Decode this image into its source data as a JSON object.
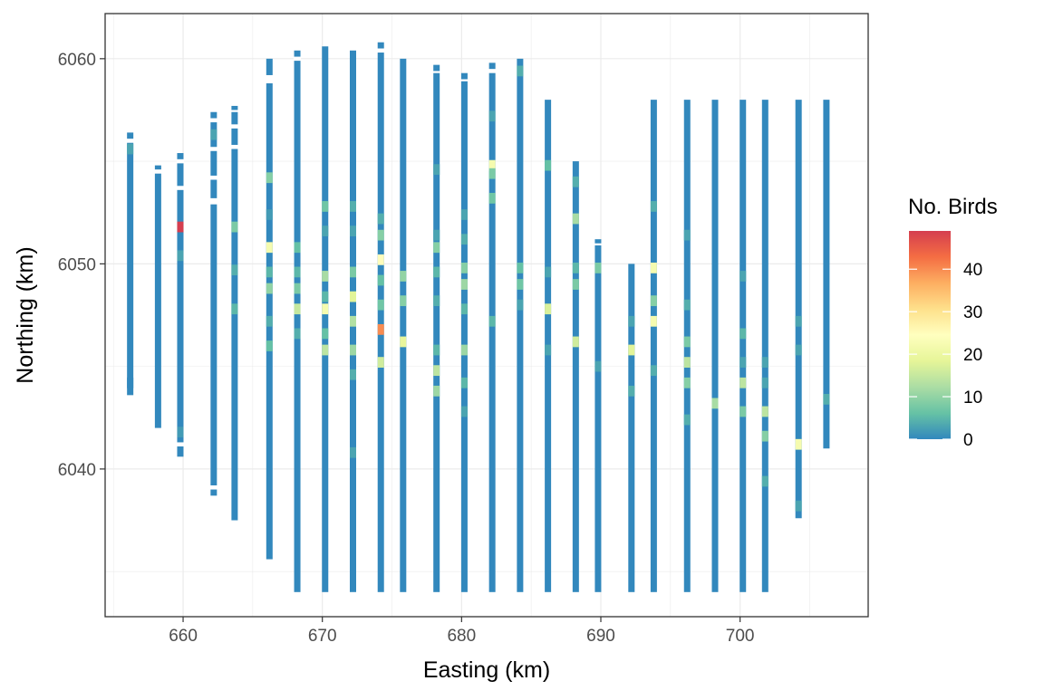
{
  "chart_data": {
    "type": "heatmap",
    "title": "",
    "xlabel": "Easting (km)",
    "ylabel": "Northing (km)",
    "xlim": [
      654.4,
      709.2
    ],
    "ylim": [
      6032.8,
      6062.2
    ],
    "xticks": [
      660,
      670,
      680,
      690,
      700
    ],
    "yticks": [
      6040,
      6050,
      6060
    ],
    "grid": true,
    "legend": {
      "title": "No. Birds",
      "position": "right",
      "min": 0,
      "max": 49,
      "ticks": [
        0,
        10,
        20,
        30,
        40
      ],
      "colors": [
        "#3288bd",
        "#66c2a5",
        "#abdda4",
        "#e6f598",
        "#ffffbf",
        "#fee08b",
        "#fdae61",
        "#f46d43",
        "#d53e4f"
      ]
    },
    "transects": [
      {
        "x": 656.2,
        "y_start": 6043.6,
        "y_end": 6056.4,
        "gaps": [
          [
            6055.9,
            6056.1
          ]
        ],
        "highlights": [
          {
            "y": 6055.6,
            "v": 3
          },
          {
            "y": 6044.2,
            "v": 0
          }
        ]
      },
      {
        "x": 658.2,
        "y_start": 6042.0,
        "y_end": 6054.8,
        "gaps": [
          [
            6054.4,
            6054.6
          ]
        ],
        "highlights": []
      },
      {
        "x": 659.8,
        "y_start": 6040.6,
        "y_end": 6055.4,
        "gaps": [
          [
            6054.9,
            6055.1
          ],
          [
            6053.6,
            6053.8
          ],
          [
            6041.1,
            6041.3
          ]
        ],
        "highlights": [
          {
            "y": 6051.8,
            "v": 49
          },
          {
            "y": 6050.4,
            "v": 3
          },
          {
            "y": 6041.8,
            "v": 2
          }
        ]
      },
      {
        "x": 662.2,
        "y_start": 6038.7,
        "y_end": 6057.4,
        "gaps": [
          [
            6056.9,
            6057.1
          ],
          [
            6055.5,
            6055.7
          ],
          [
            6054.1,
            6054.3
          ],
          [
            6052.9,
            6053.2
          ],
          [
            6039.0,
            6039.2
          ]
        ],
        "highlights": [
          {
            "y": 6056.3,
            "v": 3
          }
        ]
      },
      {
        "x": 663.7,
        "y_start": 6037.5,
        "y_end": 6057.7,
        "gaps": [
          [
            6057.4,
            6057.5
          ],
          [
            6056.6,
            6056.8
          ],
          [
            6055.6,
            6055.8
          ]
        ],
        "highlights": [
          {
            "y": 6051.8,
            "v": 8
          },
          {
            "y": 6049.7,
            "v": 4
          },
          {
            "y": 6047.8,
            "v": 5
          }
        ]
      },
      {
        "x": 666.2,
        "y_start": 6035.6,
        "y_end": 6060.0,
        "gaps": [
          [
            6058.8,
            6059.2
          ]
        ],
        "highlights": [
          {
            "y": 6054.2,
            "v": 9
          },
          {
            "y": 6052.4,
            "v": 2
          },
          {
            "y": 6050.8,
            "v": 22
          },
          {
            "y": 6049.6,
            "v": 5
          },
          {
            "y": 6048.8,
            "v": 10
          },
          {
            "y": 6047.2,
            "v": 4
          },
          {
            "y": 6046.0,
            "v": 6
          }
        ]
      },
      {
        "x": 668.2,
        "y_start": 6034.0,
        "y_end": 6060.4,
        "gaps": [
          [
            6059.9,
            6060.1
          ]
        ],
        "highlights": [
          {
            "y": 6050.8,
            "v": 6
          },
          {
            "y": 6049.6,
            "v": 5
          },
          {
            "y": 6048.8,
            "v": 8
          },
          {
            "y": 6047.8,
            "v": 15
          },
          {
            "y": 6046.6,
            "v": 4
          }
        ]
      },
      {
        "x": 670.2,
        "y_start": 6034.0,
        "y_end": 6060.6,
        "gaps": [],
        "highlights": [
          {
            "y": 6052.8,
            "v": 7
          },
          {
            "y": 6051.6,
            "v": 3
          },
          {
            "y": 6049.4,
            "v": 12
          },
          {
            "y": 6048.4,
            "v": 5
          },
          {
            "y": 6047.8,
            "v": 22
          },
          {
            "y": 6046.6,
            "v": 6
          },
          {
            "y": 6045.8,
            "v": 14
          }
        ]
      },
      {
        "x": 672.2,
        "y_start": 6034.0,
        "y_end": 6060.4,
        "gaps": [],
        "highlights": [
          {
            "y": 6052.8,
            "v": 4
          },
          {
            "y": 6051.6,
            "v": 3
          },
          {
            "y": 6049.6,
            "v": 8
          },
          {
            "y": 6048.4,
            "v": 18
          },
          {
            "y": 6047.2,
            "v": 13
          },
          {
            "y": 6045.8,
            "v": 11
          },
          {
            "y": 6044.6,
            "v": 4
          },
          {
            "y": 6040.8,
            "v": 3
          }
        ]
      },
      {
        "x": 674.2,
        "y_start": 6034.0,
        "y_end": 6060.8,
        "gaps": [
          [
            6060.3,
            6060.5
          ]
        ],
        "highlights": [
          {
            "y": 6052.2,
            "v": 4
          },
          {
            "y": 6051.4,
            "v": 9
          },
          {
            "y": 6050.2,
            "v": 25
          },
          {
            "y": 6049.2,
            "v": 6
          },
          {
            "y": 6048.0,
            "v": 7
          },
          {
            "y": 6046.8,
            "v": 40
          },
          {
            "y": 6045.2,
            "v": 16
          }
        ]
      },
      {
        "x": 675.8,
        "y_start": 6034.0,
        "y_end": 6060.0,
        "gaps": [],
        "highlights": [
          {
            "y": 6049.4,
            "v": 10
          },
          {
            "y": 6048.2,
            "v": 9
          },
          {
            "y": 6046.2,
            "v": 19
          }
        ]
      },
      {
        "x": 678.2,
        "y_start": 6034.0,
        "y_end": 6059.7,
        "gaps": [
          [
            6059.3,
            6059.4
          ]
        ],
        "highlights": [
          {
            "y": 6054.6,
            "v": 3
          },
          {
            "y": 6051.4,
            "v": 3
          },
          {
            "y": 6050.8,
            "v": 9
          },
          {
            "y": 6049.6,
            "v": 5
          },
          {
            "y": 6048.2,
            "v": 4
          },
          {
            "y": 6045.8,
            "v": 5
          },
          {
            "y": 6044.8,
            "v": 14
          },
          {
            "y": 6043.8,
            "v": 11
          }
        ]
      },
      {
        "x": 680.2,
        "y_start": 6034.0,
        "y_end": 6059.3,
        "gaps": [
          [
            6058.9,
            6059.0
          ]
        ],
        "highlights": [
          {
            "y": 6052.4,
            "v": 3
          },
          {
            "y": 6051.2,
            "v": 4
          },
          {
            "y": 6049.8,
            "v": 9
          },
          {
            "y": 6049.0,
            "v": 11
          },
          {
            "y": 6047.8,
            "v": 5
          },
          {
            "y": 6045.8,
            "v": 11
          },
          {
            "y": 6044.2,
            "v": 5
          },
          {
            "y": 6042.8,
            "v": 3
          }
        ]
      },
      {
        "x": 682.2,
        "y_start": 6034.0,
        "y_end": 6059.8,
        "gaps": [
          [
            6059.3,
            6059.5
          ]
        ],
        "highlights": [
          {
            "y": 6057.2,
            "v": 3
          },
          {
            "y": 6054.8,
            "v": 22
          },
          {
            "y": 6054.4,
            "v": 8
          },
          {
            "y": 6053.2,
            "v": 7
          },
          {
            "y": 6047.2,
            "v": 5
          }
        ]
      },
      {
        "x": 684.2,
        "y_start": 6034.0,
        "y_end": 6060.0,
        "gaps": [],
        "highlights": [
          {
            "y": 6059.4,
            "v": 4
          },
          {
            "y": 6049.8,
            "v": 6
          },
          {
            "y": 6049.0,
            "v": 7
          },
          {
            "y": 6048.0,
            "v": 3
          }
        ]
      },
      {
        "x": 686.2,
        "y_start": 6034.0,
        "y_end": 6058.0,
        "gaps": [],
        "highlights": [
          {
            "y": 6054.8,
            "v": 6
          },
          {
            "y": 6049.6,
            "v": 3
          },
          {
            "y": 6047.8,
            "v": 17
          },
          {
            "y": 6045.8,
            "v": 3
          }
        ]
      },
      {
        "x": 688.2,
        "y_start": 6034.0,
        "y_end": 6055.0,
        "gaps": [],
        "highlights": [
          {
            "y": 6054.0,
            "v": 4
          },
          {
            "y": 6052.2,
            "v": 12
          },
          {
            "y": 6049.8,
            "v": 5
          },
          {
            "y": 6049.0,
            "v": 8
          },
          {
            "y": 6046.2,
            "v": 16
          }
        ]
      },
      {
        "x": 689.8,
        "y_start": 6034.0,
        "y_end": 6051.2,
        "gaps": [
          [
            6050.9,
            6051.0
          ]
        ],
        "highlights": [
          {
            "y": 6049.8,
            "v": 8
          },
          {
            "y": 6045.0,
            "v": 3
          }
        ]
      },
      {
        "x": 692.2,
        "y_start": 6034.0,
        "y_end": 6050.0,
        "gaps": [],
        "highlights": [
          {
            "y": 6047.2,
            "v": 3
          },
          {
            "y": 6045.8,
            "v": 18
          },
          {
            "y": 6043.8,
            "v": 4
          }
        ]
      },
      {
        "x": 693.8,
        "y_start": 6034.0,
        "y_end": 6058.0,
        "gaps": [],
        "highlights": [
          {
            "y": 6052.8,
            "v": 4
          },
          {
            "y": 6049.8,
            "v": 22
          },
          {
            "y": 6048.2,
            "v": 9
          },
          {
            "y": 6047.2,
            "v": 22
          },
          {
            "y": 6044.8,
            "v": 4
          }
        ]
      },
      {
        "x": 696.2,
        "y_start": 6034.0,
        "y_end": 6058.0,
        "gaps": [],
        "highlights": [
          {
            "y": 6051.4,
            "v": 3
          },
          {
            "y": 6048.0,
            "v": 4
          },
          {
            "y": 6046.2,
            "v": 8
          },
          {
            "y": 6045.2,
            "v": 14
          },
          {
            "y": 6044.2,
            "v": 9
          },
          {
            "y": 6042.4,
            "v": 4
          }
        ]
      },
      {
        "x": 698.2,
        "y_start": 6034.0,
        "y_end": 6058.0,
        "gaps": [],
        "highlights": [
          {
            "y": 6043.2,
            "v": 12
          }
        ]
      },
      {
        "x": 700.2,
        "y_start": 6034.0,
        "y_end": 6058.0,
        "gaps": [],
        "highlights": [
          {
            "y": 6049.4,
            "v": 3
          },
          {
            "y": 6046.6,
            "v": 5
          },
          {
            "y": 6045.2,
            "v": 3
          },
          {
            "y": 6044.2,
            "v": 14
          },
          {
            "y": 6042.8,
            "v": 8
          }
        ]
      },
      {
        "x": 701.8,
        "y_start": 6034.0,
        "y_end": 6058.0,
        "gaps": [],
        "highlights": [
          {
            "y": 6045.2,
            "v": 3
          },
          {
            "y": 6044.2,
            "v": 3
          },
          {
            "y": 6042.8,
            "v": 14
          },
          {
            "y": 6041.6,
            "v": 9
          },
          {
            "y": 6039.4,
            "v": 4
          }
        ]
      },
      {
        "x": 704.2,
        "y_start": 6037.6,
        "y_end": 6058.0,
        "gaps": [],
        "highlights": [
          {
            "y": 6047.2,
            "v": 3
          },
          {
            "y": 6045.8,
            "v": 3
          },
          {
            "y": 6041.2,
            "v": 22
          },
          {
            "y": 6038.2,
            "v": 3
          }
        ]
      },
      {
        "x": 706.2,
        "y_start": 6041.0,
        "y_end": 6058.0,
        "gaps": [],
        "highlights": [
          {
            "y": 6043.4,
            "v": 4
          }
        ]
      }
    ]
  }
}
